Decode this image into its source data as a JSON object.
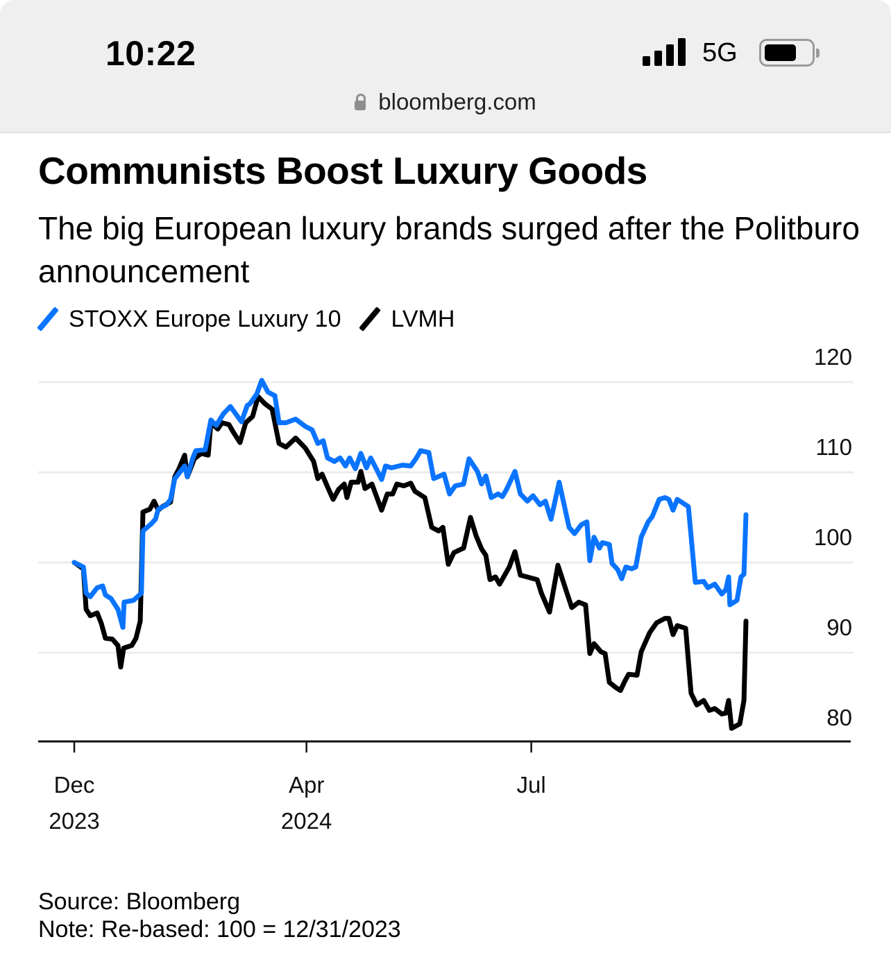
{
  "status_bar": {
    "time": "10:22",
    "network": "5G",
    "signal_bars": 4,
    "battery_level_percent": 70,
    "url": "bloomberg.com",
    "icons": [
      "signal-icon",
      "battery-icon",
      "lock-icon"
    ]
  },
  "article": {
    "title": "Communists Boost Luxury Goods",
    "subtitle": "The big European luxury brands surged after the Politburo announcement",
    "source": "Source: Bloomberg",
    "note": "Note: Re-based: 100 = 12/31/2023"
  },
  "colors": {
    "stoxx": "#0a74ff",
    "lvmh": "#000000",
    "grid": "#ececec"
  },
  "chart_data": {
    "type": "line",
    "title": "Communists Boost Luxury Goods",
    "subtitle": "The big European luxury brands surged after the Politburo announcement",
    "xlabel": "",
    "ylabel": "",
    "x_units": "calendar days since 2023-12-29",
    "xlim": [
      -15,
      300
    ],
    "ylim": [
      79,
      122
    ],
    "grid": true,
    "legend_position": "top-left",
    "y_ticks": [
      120,
      110,
      100,
      90,
      80
    ],
    "x_ticks": [
      {
        "x": 0,
        "label": "Dec",
        "sublabel": "2023"
      },
      {
        "x": 94,
        "label": "Apr",
        "sublabel": "2024"
      },
      {
        "x": 185,
        "label": "Jul",
        "sublabel": ""
      }
    ],
    "series": [
      {
        "name": "STOXX Europe Luxury 10",
        "color": "#0a74ff",
        "points": [
          [
            0,
            100.0
          ],
          [
            3.7,
            99.5
          ],
          [
            4.8,
            96.6
          ],
          [
            6.5,
            96.2
          ],
          [
            9.3,
            97.2
          ],
          [
            11.5,
            97.4
          ],
          [
            12.6,
            96.4
          ],
          [
            14.9,
            96.0
          ],
          [
            17.7,
            94.8
          ],
          [
            19.7,
            92.8
          ],
          [
            20.2,
            95.6
          ],
          [
            24,
            95.8
          ],
          [
            25.6,
            96.2
          ],
          [
            27.2,
            96.6
          ],
          [
            27.8,
            103.5
          ],
          [
            31.2,
            104.3
          ],
          [
            32.9,
            104.8
          ],
          [
            34,
            105.9
          ],
          [
            37.4,
            106.4
          ],
          [
            39,
            107.0
          ],
          [
            40.7,
            109.3
          ],
          [
            43,
            110.1
          ],
          [
            44.7,
            110.7
          ],
          [
            45.8,
            109.5
          ],
          [
            48,
            111.6
          ],
          [
            49.2,
            112.4
          ],
          [
            53,
            112.5
          ],
          [
            55.3,
            115.8
          ],
          [
            57.5,
            115.2
          ],
          [
            60.4,
            116.5
          ],
          [
            63.2,
            117.3
          ],
          [
            67.7,
            115.6
          ],
          [
            70,
            117.4
          ],
          [
            71.1,
            117.6
          ],
          [
            73.9,
            118.7
          ],
          [
            75.9,
            120.2
          ],
          [
            78.4,
            118.9
          ],
          [
            81.2,
            118.5
          ],
          [
            82.9,
            115.5
          ],
          [
            85.7,
            115.5
          ],
          [
            89.6,
            115.9
          ],
          [
            93.5,
            115.1
          ],
          [
            96.3,
            114.7
          ],
          [
            98.6,
            113.2
          ],
          [
            100.8,
            113.5
          ],
          [
            102.5,
            111.6
          ],
          [
            105.3,
            111.2
          ],
          [
            107.6,
            111.6
          ],
          [
            109.8,
            110.7
          ],
          [
            111.5,
            111.6
          ],
          [
            113.8,
            110.4
          ],
          [
            116,
            112.1
          ],
          [
            118.3,
            110.5
          ],
          [
            120,
            111.6
          ],
          [
            122.8,
            110.1
          ],
          [
            124.4,
            109.2
          ],
          [
            126,
            110.7
          ],
          [
            128.4,
            110.5
          ],
          [
            132.9,
            110.8
          ],
          [
            136.2,
            110.7
          ],
          [
            138.5,
            111.6
          ],
          [
            140.2,
            112.4
          ],
          [
            143.5,
            112.2
          ],
          [
            145.5,
            109.3
          ],
          [
            149.7,
            109.8
          ],
          [
            151.9,
            107.6
          ],
          [
            154.2,
            108.5
          ],
          [
            157.6,
            108.7
          ],
          [
            159.8,
            111.5
          ],
          [
            163.2,
            110.1
          ],
          [
            164.9,
            108.7
          ],
          [
            166.6,
            109.6
          ],
          [
            168.8,
            107.2
          ],
          [
            171.6,
            107.6
          ],
          [
            173.3,
            107.3
          ],
          [
            175,
            108.1
          ],
          [
            178.4,
            110.1
          ],
          [
            180.6,
            107.6
          ],
          [
            183.4,
            106.8
          ],
          [
            185.7,
            107.4
          ],
          [
            188.5,
            106.4
          ],
          [
            190.7,
            106.8
          ],
          [
            193,
            104.8
          ],
          [
            196.3,
            108.9
          ],
          [
            200.3,
            103.9
          ],
          [
            202.5,
            103.2
          ],
          [
            205.3,
            104.2
          ],
          [
            207.5,
            104.5
          ],
          [
            208.7,
            100.2
          ],
          [
            210.4,
            102.8
          ],
          [
            212.6,
            101.6
          ],
          [
            213.8,
            102.2
          ],
          [
            216.6,
            102.0
          ],
          [
            217.7,
            99.9
          ],
          [
            220,
            99.2
          ],
          [
            221.6,
            98.2
          ],
          [
            223.3,
            99.5
          ],
          [
            225.6,
            99.3
          ],
          [
            227.3,
            99.5
          ],
          [
            229.5,
            102.8
          ],
          [
            232.3,
            104.5
          ],
          [
            234,
            105.1
          ],
          [
            236.8,
            107.0
          ],
          [
            239.1,
            107.2
          ],
          [
            240.7,
            107.0
          ],
          [
            242.4,
            105.8
          ],
          [
            244.1,
            107.0
          ],
          [
            246.9,
            106.5
          ],
          [
            248.6,
            106.2
          ],
          [
            251.4,
            97.8
          ],
          [
            254.8,
            97.9
          ],
          [
            256.5,
            97.2
          ],
          [
            259.3,
            97.6
          ],
          [
            262.1,
            96.5
          ],
          [
            263.8,
            97.0
          ],
          [
            264.9,
            98.4
          ],
          [
            265.4,
            95.3
          ],
          [
            268.3,
            95.8
          ],
          [
            269.9,
            98.4
          ],
          [
            271.1,
            98.7
          ],
          [
            271.9,
            105.3
          ]
        ]
      },
      {
        "name": "LVMH",
        "color": "#000000",
        "points": [
          [
            0,
            100.0
          ],
          [
            3.7,
            99.3
          ],
          [
            4.8,
            94.8
          ],
          [
            6.5,
            94.1
          ],
          [
            9.3,
            94.4
          ],
          [
            11,
            93.2
          ],
          [
            12.6,
            91.6
          ],
          [
            15.4,
            91.5
          ],
          [
            17.7,
            90.8
          ],
          [
            18.8,
            88.4
          ],
          [
            20,
            90.5
          ],
          [
            23.3,
            90.8
          ],
          [
            25,
            91.6
          ],
          [
            26.7,
            93.5
          ],
          [
            27.8,
            105.6
          ],
          [
            30.6,
            105.9
          ],
          [
            32.3,
            106.8
          ],
          [
            34,
            105.8
          ],
          [
            35.7,
            106.2
          ],
          [
            39,
            106.7
          ],
          [
            40.7,
            109.5
          ],
          [
            42.4,
            110.4
          ],
          [
            44.7,
            111.9
          ],
          [
            45.8,
            109.5
          ],
          [
            48.6,
            111.5
          ],
          [
            51.4,
            112.1
          ],
          [
            54.2,
            111.9
          ],
          [
            55.3,
            115.5
          ],
          [
            58.1,
            114.8
          ],
          [
            59.8,
            115.5
          ],
          [
            62.6,
            115.3
          ],
          [
            64.3,
            114.5
          ],
          [
            67.1,
            113.3
          ],
          [
            69.4,
            115.5
          ],
          [
            72.2,
            116.2
          ],
          [
            74.4,
            118.4
          ],
          [
            77.2,
            117.6
          ],
          [
            80.1,
            117.0
          ],
          [
            82.9,
            113.2
          ],
          [
            85.7,
            112.8
          ],
          [
            89.6,
            113.8
          ],
          [
            93.5,
            112.7
          ],
          [
            96.9,
            111.2
          ],
          [
            98.6,
            109.3
          ],
          [
            100.3,
            109.8
          ],
          [
            102.5,
            108.4
          ],
          [
            104.8,
            107.0
          ],
          [
            107,
            108.1
          ],
          [
            109.3,
            108.7
          ],
          [
            110.4,
            107.2
          ],
          [
            112.1,
            108.9
          ],
          [
            114.9,
            108.9
          ],
          [
            116,
            110.1
          ],
          [
            117.7,
            108.2
          ],
          [
            120.5,
            108.7
          ],
          [
            124.4,
            105.8
          ],
          [
            126.7,
            107.6
          ],
          [
            128.9,
            107.6
          ],
          [
            130.6,
            108.7
          ],
          [
            133.4,
            108.5
          ],
          [
            136.2,
            108.8
          ],
          [
            137.9,
            107.9
          ],
          [
            141.9,
            107.2
          ],
          [
            144.7,
            103.9
          ],
          [
            147.5,
            103.5
          ],
          [
            149.2,
            103.9
          ],
          [
            151.4,
            99.8
          ],
          [
            153.7,
            101.1
          ],
          [
            157.6,
            101.6
          ],
          [
            160.4,
            105.0
          ],
          [
            162.6,
            103.0
          ],
          [
            164.9,
            101.5
          ],
          [
            166.6,
            100.8
          ],
          [
            168.3,
            98.1
          ],
          [
            170.5,
            98.4
          ],
          [
            172.2,
            97.6
          ],
          [
            176.1,
            99.5
          ],
          [
            178.4,
            101.2
          ],
          [
            180.6,
            98.6
          ],
          [
            184.6,
            98.3
          ],
          [
            187.4,
            98.1
          ],
          [
            189.1,
            96.6
          ],
          [
            192.4,
            94.5
          ],
          [
            195.8,
            99.7
          ],
          [
            199.2,
            96.8
          ],
          [
            201.4,
            95.0
          ],
          [
            204.2,
            95.6
          ],
          [
            207,
            95.3
          ],
          [
            208.7,
            89.9
          ],
          [
            210.4,
            91.0
          ],
          [
            213.2,
            90.1
          ],
          [
            214.9,
            89.9
          ],
          [
            216.6,
            86.7
          ],
          [
            219.4,
            86.1
          ],
          [
            221.1,
            85.8
          ],
          [
            222.8,
            86.8
          ],
          [
            224.4,
            87.6
          ],
          [
            227.8,
            87.5
          ],
          [
            229.5,
            90.1
          ],
          [
            232.9,
            92.2
          ],
          [
            235.7,
            93.3
          ],
          [
            239.1,
            93.8
          ],
          [
            240.7,
            93.8
          ],
          [
            242.4,
            92.0
          ],
          [
            244.1,
            93.0
          ],
          [
            247.5,
            92.7
          ],
          [
            249.7,
            85.5
          ],
          [
            252,
            84.2
          ],
          [
            254.8,
            84.7
          ],
          [
            257.1,
            83.6
          ],
          [
            259.3,
            83.8
          ],
          [
            262.1,
            83.2
          ],
          [
            263.8,
            83.3
          ],
          [
            264.9,
            84.7
          ],
          [
            266.1,
            81.6
          ],
          [
            269.4,
            82.1
          ],
          [
            271.1,
            84.7
          ],
          [
            271.9,
            93.5
          ]
        ]
      }
    ]
  }
}
